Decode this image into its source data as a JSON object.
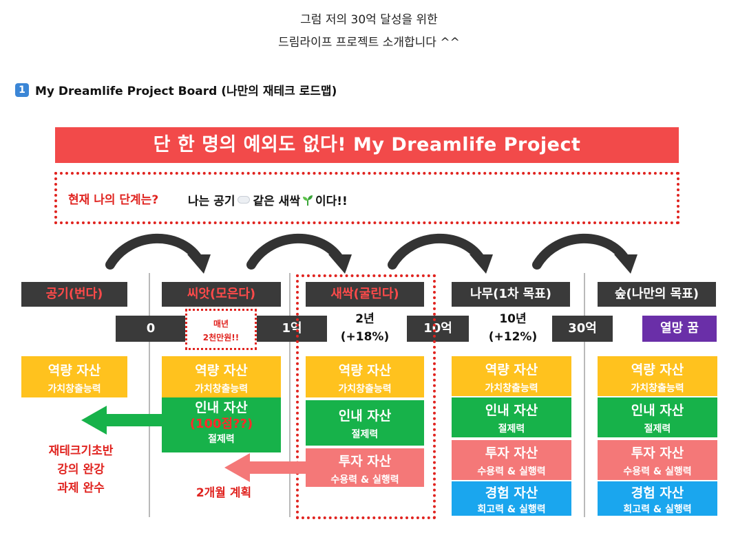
{
  "intro": {
    "line1": "그럼 저의 30억 달성을 위한",
    "line2": "드림라이프 프로젝트 소개합니다 ^^"
  },
  "section": {
    "number": "1",
    "title": "My Dreamlife Project Board (나만의 재테크 로드맵)"
  },
  "board": {
    "banner": "단 한 명의 예외도 없다! My Dreamlife Project",
    "status_question": "현재 나의 단계는?",
    "status_answer_1": "나는 공기",
    "status_answer_2": "같은 새싹",
    "status_answer_3": "이다!!",
    "stages": [
      "공기(번다)",
      "씨앗(모은다)",
      "새싹(굴린다)",
      "나무(1차 목표)",
      "숲(나만의 목표)"
    ],
    "amounts": [
      "0",
      "1억",
      "10억",
      "30억",
      "열망 꿈"
    ],
    "monthly_line1": "매년",
    "monthly_line2": "2천만원!!",
    "period1_years": "2년",
    "period1_rate": "(+18%)",
    "period2_years": "10년",
    "period2_rate": "(+12%)",
    "assets": {
      "capability_title": "역량 자산",
      "capability_sub": "가치창출능력",
      "patience_title": "인내 자산",
      "patience_sub": "절제력",
      "patience_score": "(100점??)",
      "investment_title": "투자 자산",
      "investment_sub": "수용력 & 실행력",
      "experience_title": "경험 자산",
      "experience_sub": "회고력 & 실행력"
    },
    "note_left": [
      "재테크기초반",
      "강의 완강",
      "과제 완수"
    ],
    "note_plan": "2개월 계획"
  },
  "colors": {
    "banner_red": "#f24a4a",
    "accent_red": "#e0231f",
    "stage_dark": "#3a3a3a",
    "capability_yellow": "#ffc21e",
    "patience_green": "#17b24a",
    "investment_pink": "#f47878",
    "experience_blue": "#1aa6ee",
    "dream_purple": "#6a2fa8"
  },
  "icons": [
    "keycap-one-icon",
    "cloud-icon",
    "sprout-icon"
  ]
}
